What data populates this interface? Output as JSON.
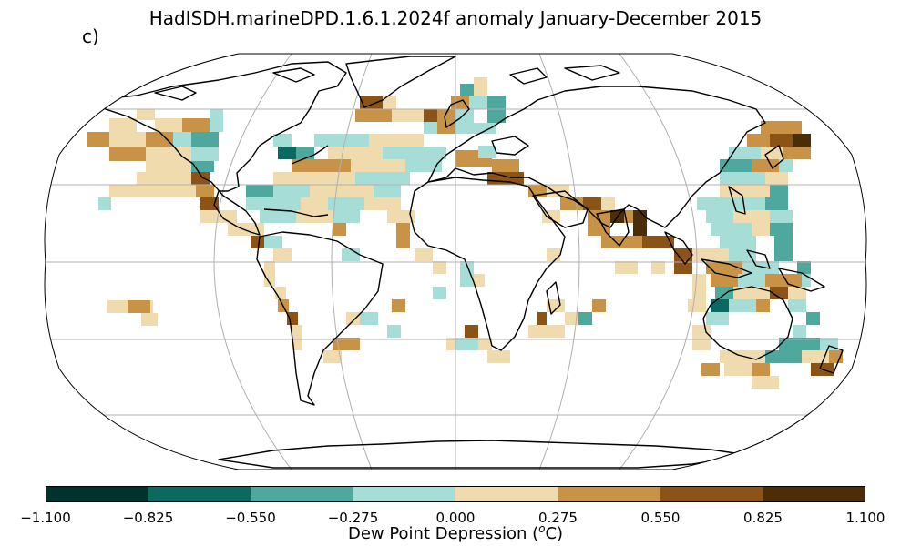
{
  "title": "HadISDH.marineDPD.1.6.1.2024f anomaly January-December 2015",
  "panel_label": "c)",
  "colorbar": {
    "label_text": "Dew Point Depression (",
    "label_sup": "o",
    "label_unit": "C)",
    "ticks": [
      "−1.100",
      "−0.825",
      "−0.550",
      "−0.275",
      "0.000",
      "0.275",
      "0.550",
      "0.825",
      "1.100"
    ],
    "colors": [
      "#01332d",
      "#0a6a61",
      "#4ea89d",
      "#a7ddd7",
      "#efdbad",
      "#c99347",
      "#8b5316",
      "#4b2d08"
    ]
  },
  "map": {
    "projection": "Robinson",
    "gridlines": true,
    "coastlines": true
  }
}
